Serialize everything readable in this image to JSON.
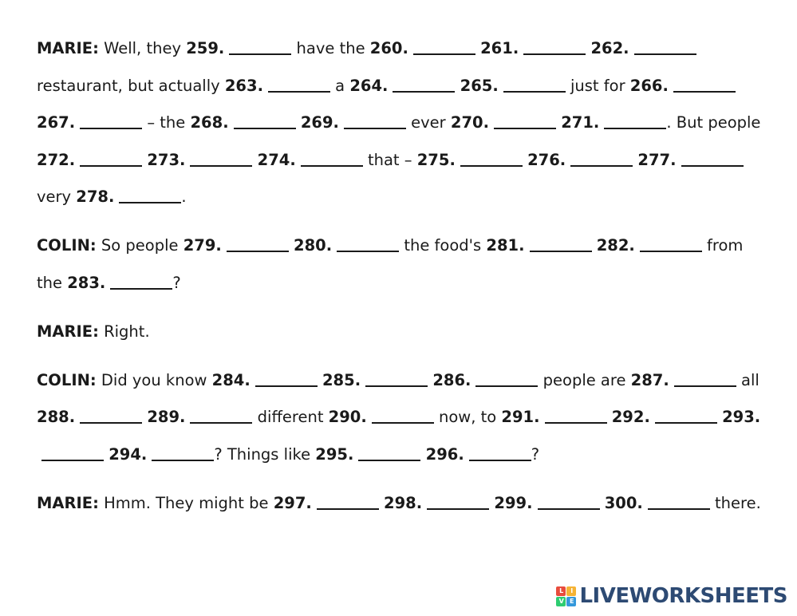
{
  "paragraphs": [
    {
      "speaker": "MARIE:",
      "segments": [
        {
          "t": "text",
          "v": " Well, they "
        },
        {
          "t": "blank",
          "n": "259."
        },
        {
          "t": "text",
          "v": " have the "
        },
        {
          "t": "blank",
          "n": "260."
        },
        {
          "t": "text",
          "v": " "
        },
        {
          "t": "blank",
          "n": "261."
        },
        {
          "t": "text",
          "v": " "
        },
        {
          "t": "blank",
          "n": "262."
        },
        {
          "t": "text",
          "v": " restaurant, but actually "
        },
        {
          "t": "blank",
          "n": "263."
        },
        {
          "t": "text",
          "v": " a "
        },
        {
          "t": "blank",
          "n": "264."
        },
        {
          "t": "text",
          "v": " "
        },
        {
          "t": "blank",
          "n": "265."
        },
        {
          "t": "text",
          "v": " just for "
        },
        {
          "t": "blank",
          "n": "266."
        },
        {
          "t": "text",
          "v": " "
        },
        {
          "t": "blank",
          "n": "267."
        },
        {
          "t": "text",
          "v": " – the "
        },
        {
          "t": "blank",
          "n": "268."
        },
        {
          "t": "text",
          "v": " "
        },
        {
          "t": "blank",
          "n": "269."
        },
        {
          "t": "text",
          "v": " ever "
        },
        {
          "t": "blank",
          "n": "270."
        },
        {
          "t": "text",
          "v": " "
        },
        {
          "t": "blank",
          "n": "271."
        },
        {
          "t": "text",
          "v": ". But people "
        },
        {
          "t": "blank",
          "n": "272."
        },
        {
          "t": "text",
          "v": " "
        },
        {
          "t": "blank",
          "n": "273."
        },
        {
          "t": "text",
          "v": " "
        },
        {
          "t": "blank",
          "n": "274."
        },
        {
          "t": "text",
          "v": " that – "
        },
        {
          "t": "blank",
          "n": "275."
        },
        {
          "t": "text",
          "v": " "
        },
        {
          "t": "blank",
          "n": "276."
        },
        {
          "t": "text",
          "v": " "
        },
        {
          "t": "blank",
          "n": "277."
        },
        {
          "t": "text",
          "v": " very "
        },
        {
          "t": "blank",
          "n": "278."
        },
        {
          "t": "text",
          "v": "."
        }
      ]
    },
    {
      "speaker": "COLIN:",
      "segments": [
        {
          "t": "text",
          "v": " So people "
        },
        {
          "t": "blank",
          "n": "279."
        },
        {
          "t": "text",
          "v": " "
        },
        {
          "t": "blank",
          "n": "280."
        },
        {
          "t": "text",
          "v": " the food's "
        },
        {
          "t": "blank",
          "n": "281."
        },
        {
          "t": "text",
          "v": " "
        },
        {
          "t": "blank",
          "n": "282."
        },
        {
          "t": "text",
          "v": " from the "
        },
        {
          "t": "blank",
          "n": "283."
        },
        {
          "t": "text",
          "v": "?"
        }
      ]
    },
    {
      "speaker": "MARIE:",
      "segments": [
        {
          "t": "text",
          "v": " Right."
        }
      ]
    },
    {
      "speaker": "COLIN:",
      "segments": [
        {
          "t": "text",
          "v": " Did you know "
        },
        {
          "t": "blank",
          "n": "284."
        },
        {
          "t": "text",
          "v": " "
        },
        {
          "t": "blank",
          "n": "285."
        },
        {
          "t": "text",
          "v": " "
        },
        {
          "t": "blank",
          "n": "286."
        },
        {
          "t": "text",
          "v": " people are "
        },
        {
          "t": "blank",
          "n": "287."
        },
        {
          "t": "text",
          "v": " all "
        },
        {
          "t": "blank",
          "n": "288."
        },
        {
          "t": "text",
          "v": " "
        },
        {
          "t": "blank",
          "n": "289."
        },
        {
          "t": "text",
          "v": " different "
        },
        {
          "t": "blank",
          "n": "290."
        },
        {
          "t": "text",
          "v": " now, to "
        },
        {
          "t": "blank",
          "n": "291."
        },
        {
          "t": "text",
          "v": " "
        },
        {
          "t": "blank",
          "n": "292."
        },
        {
          "t": "text",
          "v": " "
        },
        {
          "t": "blank",
          "n": "293."
        },
        {
          "t": "text",
          "v": " "
        },
        {
          "t": "blank",
          "n": "294."
        },
        {
          "t": "text",
          "v": "? Things like "
        },
        {
          "t": "blank",
          "n": "295."
        },
        {
          "t": "text",
          "v": " "
        },
        {
          "t": "blank",
          "n": "296."
        },
        {
          "t": "text",
          "v": "?"
        }
      ]
    },
    {
      "speaker": "MARIE:",
      "segments": [
        {
          "t": "text",
          "v": " Hmm. They might be "
        },
        {
          "t": "blank",
          "n": "297."
        },
        {
          "t": "text",
          "v": " "
        },
        {
          "t": "blank",
          "n": "298."
        },
        {
          "t": "text",
          "v": " "
        },
        {
          "t": "blank",
          "n": "299."
        },
        {
          "t": "text",
          "v": " "
        },
        {
          "t": "blank",
          "n": "300."
        },
        {
          "t": "text",
          "v": " there."
        }
      ]
    }
  ],
  "brand": {
    "text": "LIVEWORKSHEETS",
    "logo_tiles": [
      {
        "letter": "L",
        "color": "#e84c3d"
      },
      {
        "letter": "I",
        "color": "#f5b335"
      },
      {
        "letter": "V",
        "color": "#2ecc71"
      },
      {
        "letter": "E",
        "color": "#3498db"
      }
    ]
  }
}
